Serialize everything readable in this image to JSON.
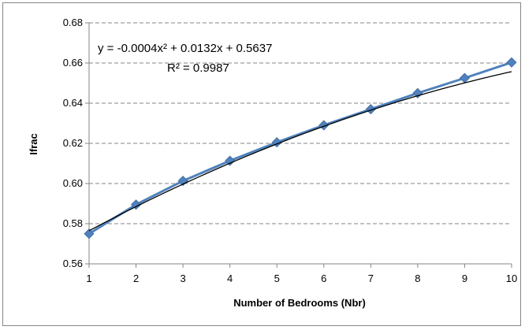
{
  "chart_data": {
    "type": "scatter",
    "title": "",
    "xlabel": "Number of Bedrooms (Nbr)",
    "ylabel": "Ifrac",
    "xlim": [
      1,
      10
    ],
    "ylim": [
      0.56,
      0.68
    ],
    "x_ticks": [
      "1",
      "2",
      "3",
      "4",
      "5",
      "6",
      "7",
      "8",
      "9",
      "10"
    ],
    "y_ticks": [
      "0.56",
      "0.58",
      "0.60",
      "0.62",
      "0.64",
      "0.66",
      "0.68"
    ],
    "grid": "horizontal-dashed",
    "colors": {
      "series": "#4F81BD",
      "trendline": "#000000",
      "grid": "#868686"
    },
    "series": [
      {
        "x": [
          1,
          2,
          3,
          4,
          5,
          6,
          7,
          8,
          9,
          10
        ],
        "y": [
          0.575,
          0.5895,
          0.6013,
          0.6113,
          0.6205,
          0.629,
          0.637,
          0.645,
          0.6525,
          0.6603
        ]
      }
    ],
    "trendline": {
      "type": "polynomial-2",
      "coefficients": [
        -0.0004,
        0.0132,
        0.5637
      ],
      "equation": "y = -0.0004x² + 0.0132x + 0.5637",
      "r_squared": "R² = 0.9987"
    }
  }
}
